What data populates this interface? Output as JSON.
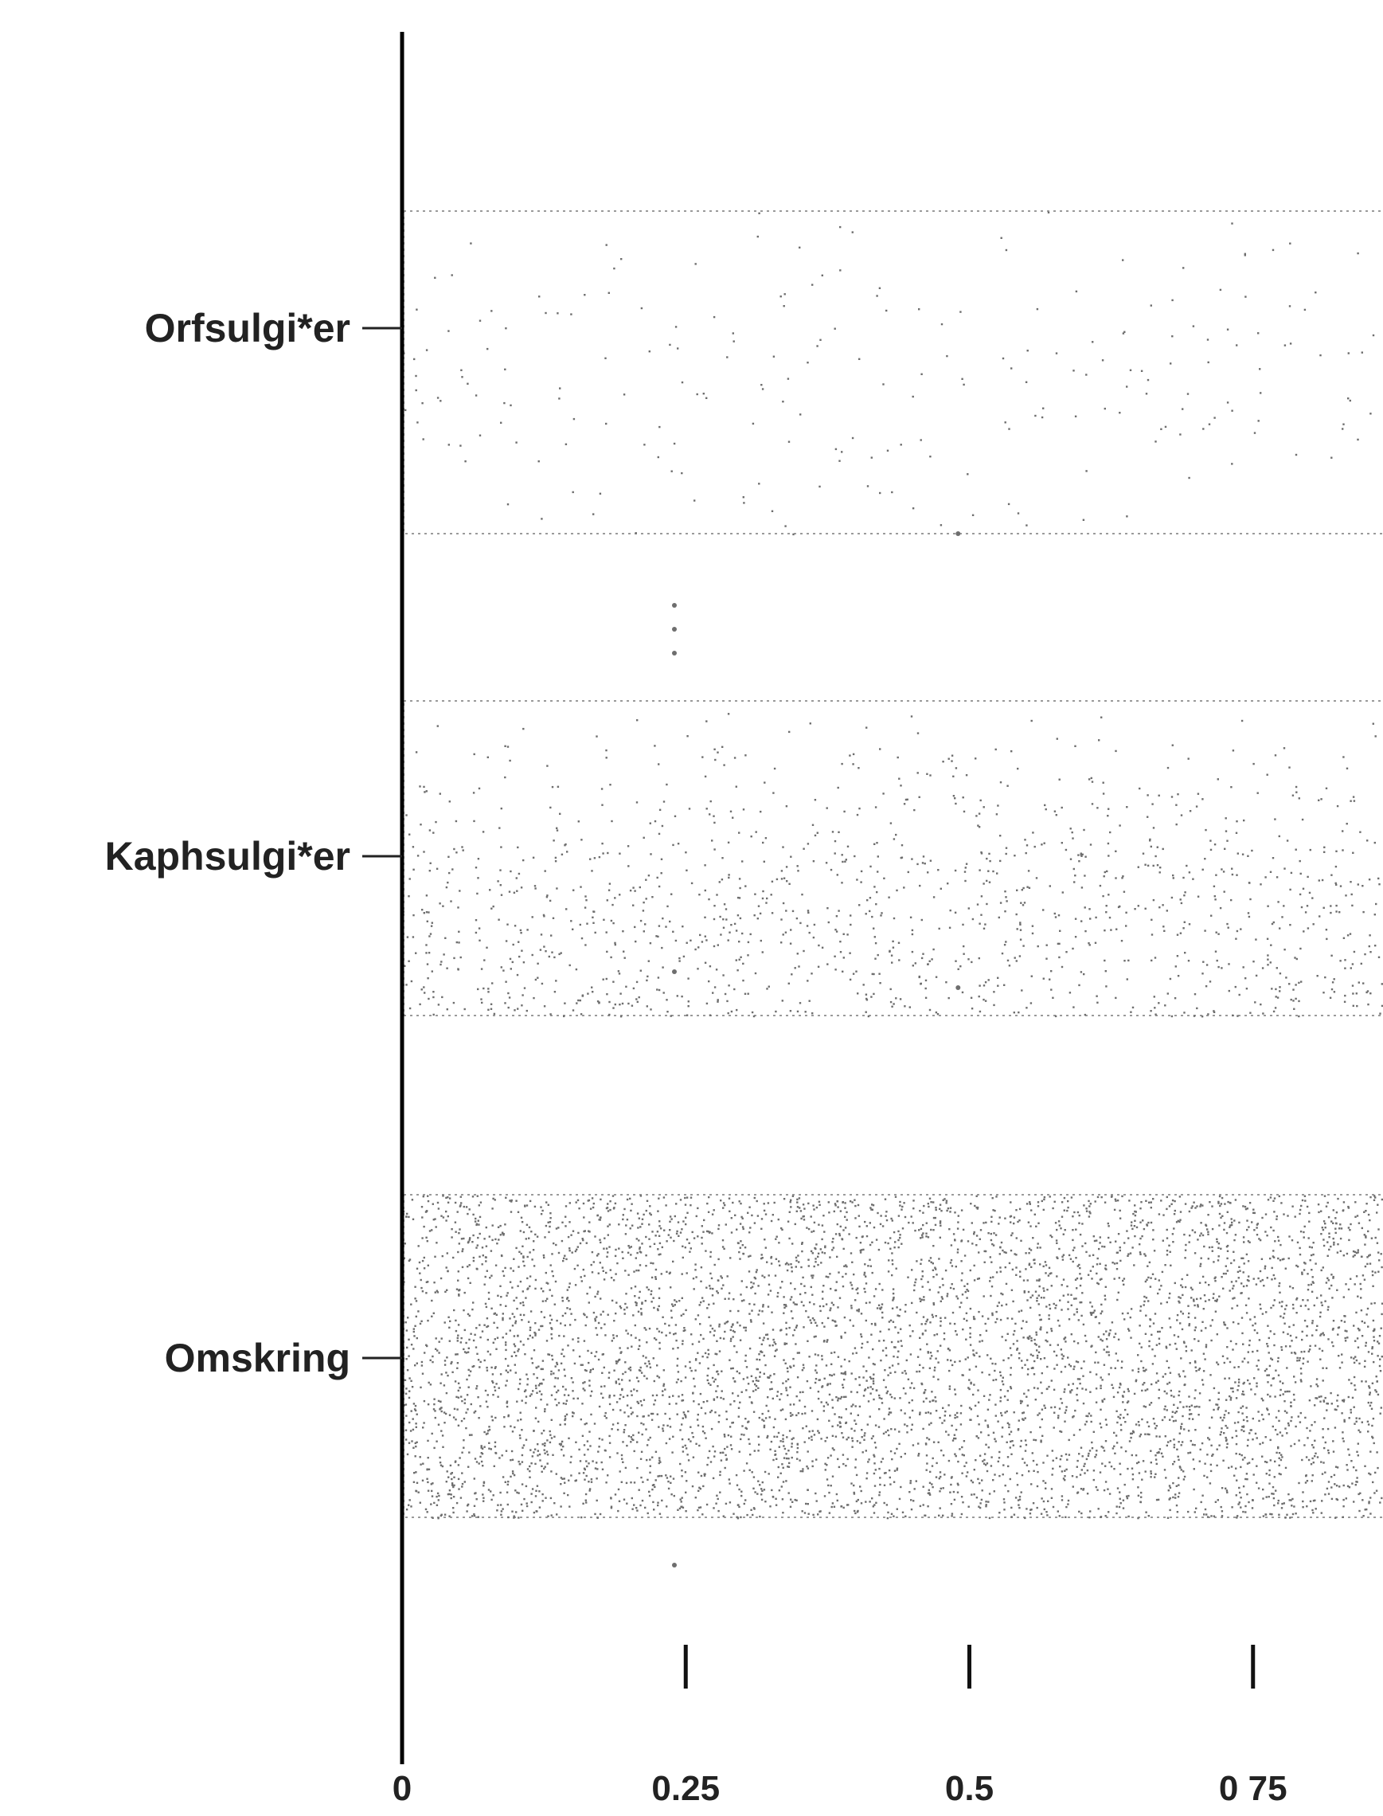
{
  "chart_data": {
    "type": "scatter",
    "subtype": "strip-plot",
    "orientation": "horizontal",
    "title": "",
    "xlabel": "",
    "ylabel": "",
    "xlim": [
      0,
      1
    ],
    "x_ticks": [
      {
        "value": 0,
        "label": "0"
      },
      {
        "value": 0.25,
        "label": "0.25"
      },
      {
        "value": 0.5,
        "label": "0.5"
      },
      {
        "value": 0.75,
        "label": "0 75"
      }
    ],
    "categories": [
      "Orfsulgi*er",
      "Kaphsulgi*er",
      "Omskring"
    ],
    "series": [
      {
        "category": "Orfsulgi*er",
        "density": "sparse",
        "band_extent_x": [
          0,
          1
        ],
        "outliers": [
          0.24,
          0.24,
          0.24,
          0.49
        ]
      },
      {
        "category": "Kaphsulgi*er",
        "density": "medium, denser toward lower half",
        "band_extent_x": [
          0,
          1
        ],
        "outliers": [
          0.49,
          0.24
        ]
      },
      {
        "category": "Omskring",
        "density": "very dense",
        "band_extent_x": [
          0,
          1
        ],
        "outliers": [
          0.24
        ]
      }
    ],
    "grid": false,
    "legend": "none",
    "colors": {
      "points": "#6e6e6e",
      "axis": "#000000",
      "background": "#ffffff"
    }
  }
}
